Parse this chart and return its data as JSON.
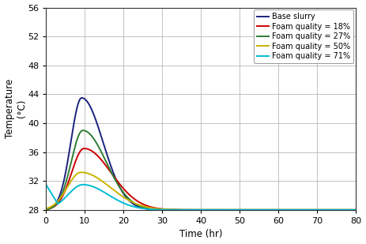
{
  "title": "",
  "xlabel": "Time (hr)",
  "ylabel": "Temperature\n(°C)",
  "xlim": [
    0,
    80
  ],
  "ylim": [
    28,
    56
  ],
  "xticks": [
    0,
    10,
    20,
    30,
    40,
    50,
    60,
    70,
    80
  ],
  "yticks": [
    28,
    32,
    36,
    40,
    44,
    48,
    52,
    56
  ],
  "series": [
    {
      "label": "Base slurry",
      "color": "#1a237e",
      "peak_temp": 43.5,
      "peak_time": 9.2,
      "sigma_rise": 2.8,
      "sigma_fall": 5.5,
      "base_temp": 28.0,
      "start_temp": 28.0
    },
    {
      "label": "Foam quality = 18%",
      "color": "#cc0000",
      "peak_temp": 36.5,
      "peak_time": 9.8,
      "sigma_rise": 3.2,
      "sigma_fall": 7.0,
      "base_temp": 28.0,
      "start_temp": 28.0
    },
    {
      "label": "Foam quality = 27%",
      "color": "#2e7d32",
      "peak_temp": 39.0,
      "peak_time": 9.5,
      "sigma_rise": 3.0,
      "sigma_fall": 6.0,
      "base_temp": 28.0,
      "start_temp": 28.0
    },
    {
      "label": "Foam quality = 50%",
      "color": "#c8b400",
      "peak_temp": 33.2,
      "peak_time": 9.0,
      "sigma_rise": 3.5,
      "sigma_fall": 7.5,
      "base_temp": 28.0,
      "start_temp": 28.5
    },
    {
      "label": "Foam quality = 71%",
      "color": "#00bcd4",
      "peak_temp": 31.5,
      "peak_time": 9.5,
      "sigma_rise": 3.8,
      "sigma_fall": 6.5,
      "base_temp": 28.0,
      "start_temp": 31.5
    }
  ],
  "background_color": "#ffffff",
  "grid_color": "#b8b8b8",
  "legend_fontsize": 7.0,
  "axis_fontsize": 8.5,
  "tick_fontsize": 8.0,
  "figsize": [
    4.63,
    3.09
  ],
  "dpi": 100
}
